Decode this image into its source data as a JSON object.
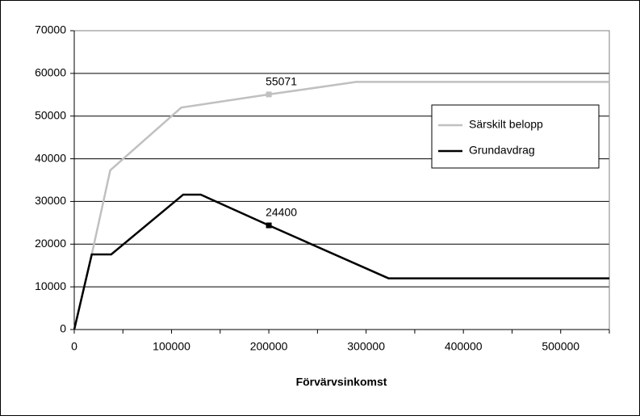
{
  "chart_data": {
    "type": "line",
    "xlabel": "Förvärvsinkomst",
    "xlim": [
      0,
      550000
    ],
    "xticks": [
      0,
      100000,
      200000,
      300000,
      400000,
      500000
    ],
    "ylim": [
      0,
      70000
    ],
    "yticks": [
      0,
      10000,
      20000,
      30000,
      40000,
      50000,
      60000,
      70000
    ],
    "grid": true,
    "legend": "right",
    "series": [
      {
        "name": "Särskilt belopp",
        "color": "#c0c0c0",
        "x": [
          0,
          18000,
          37000,
          110000,
          200000,
          290000,
          550000
        ],
        "values": [
          0,
          17600,
          37300,
          52000,
          55071,
          58000,
          58000
        ]
      },
      {
        "name": "Grundavdrag",
        "color": "#000000",
        "x": [
          0,
          18000,
          38000,
          112000,
          130000,
          200000,
          323000,
          550000
        ],
        "values": [
          0,
          17600,
          17600,
          31600,
          31600,
          24400,
          12000,
          12000
        ]
      }
    ],
    "annotations": [
      {
        "text": "55071",
        "x": 200000,
        "y": 55071,
        "color": "#c0c0c0"
      },
      {
        "text": "24400",
        "x": 200000,
        "y": 24400,
        "color": "#000000"
      }
    ]
  }
}
